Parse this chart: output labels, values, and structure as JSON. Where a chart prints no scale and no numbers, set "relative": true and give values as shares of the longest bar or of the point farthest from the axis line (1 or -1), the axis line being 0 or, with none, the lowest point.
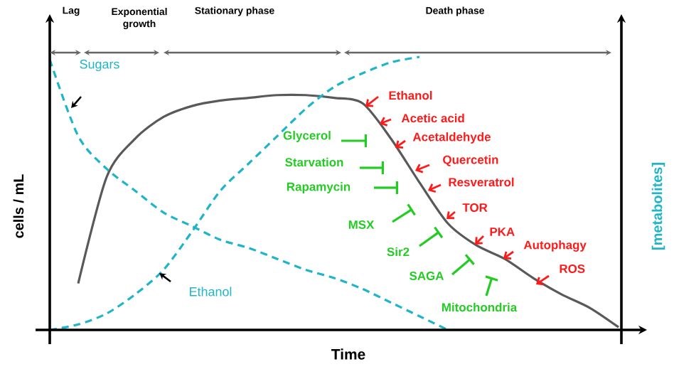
{
  "chart_data": {
    "type": "line",
    "relative": true,
    "xlabel": "Time",
    "ylabel": "cells / mL",
    "y2label": "[metabolites]",
    "categories": [
      null,
      null,
      null,
      null,
      null,
      null,
      null,
      null,
      null,
      null,
      null,
      null,
      null,
      null,
      null,
      null,
      null,
      null,
      null,
      null,
      null
    ],
    "series": [
      {
        "color": "#595959",
        "line_style": "solid",
        "values": [
          null,
          0.17,
          0.56,
          0.7,
          0.78,
          0.82,
          0.84,
          0.85,
          0.86,
          0.86,
          0.85,
          0.83,
          0.7,
          0.54,
          0.39,
          0.31,
          0.26,
          0.19,
          0.13,
          0.08,
          0.01
        ]
      },
      {
        "name": "Sugars",
        "color": "#1fb5c9",
        "line_style": "dashed",
        "values": [
          0.99,
          0.71,
          0.59,
          0.51,
          0.43,
          0.38,
          0.33,
          0.3,
          0.26,
          0.22,
          0.19,
          0.15,
          0.1,
          0.05,
          0.0,
          null,
          null,
          null,
          null,
          null,
          null
        ]
      },
      {
        "name": "Ethanol",
        "color": "#1fb5c9",
        "line_style": "dashed",
        "values": [
          0.0,
          0.02,
          0.06,
          0.13,
          0.22,
          0.36,
          0.51,
          0.61,
          0.71,
          0.81,
          0.89,
          0.94,
          0.98,
          1.0,
          null,
          null,
          null,
          null,
          null,
          null,
          null
        ]
      }
    ],
    "annotations": [
      "Lag",
      "Exponential growth",
      "Stationary phase",
      "Death phase",
      "Ethanol",
      "Acetic acid",
      "Acetaldehyde",
      "Quercetin",
      "Resveratrol",
      "TOR",
      "PKA",
      "Autophagy",
      "ROS",
      "Glycerol",
      "Starvation",
      "Rapamycin",
      "MSX",
      "Sir2",
      "SAGA",
      "Mitochondria"
    ]
  }
}
